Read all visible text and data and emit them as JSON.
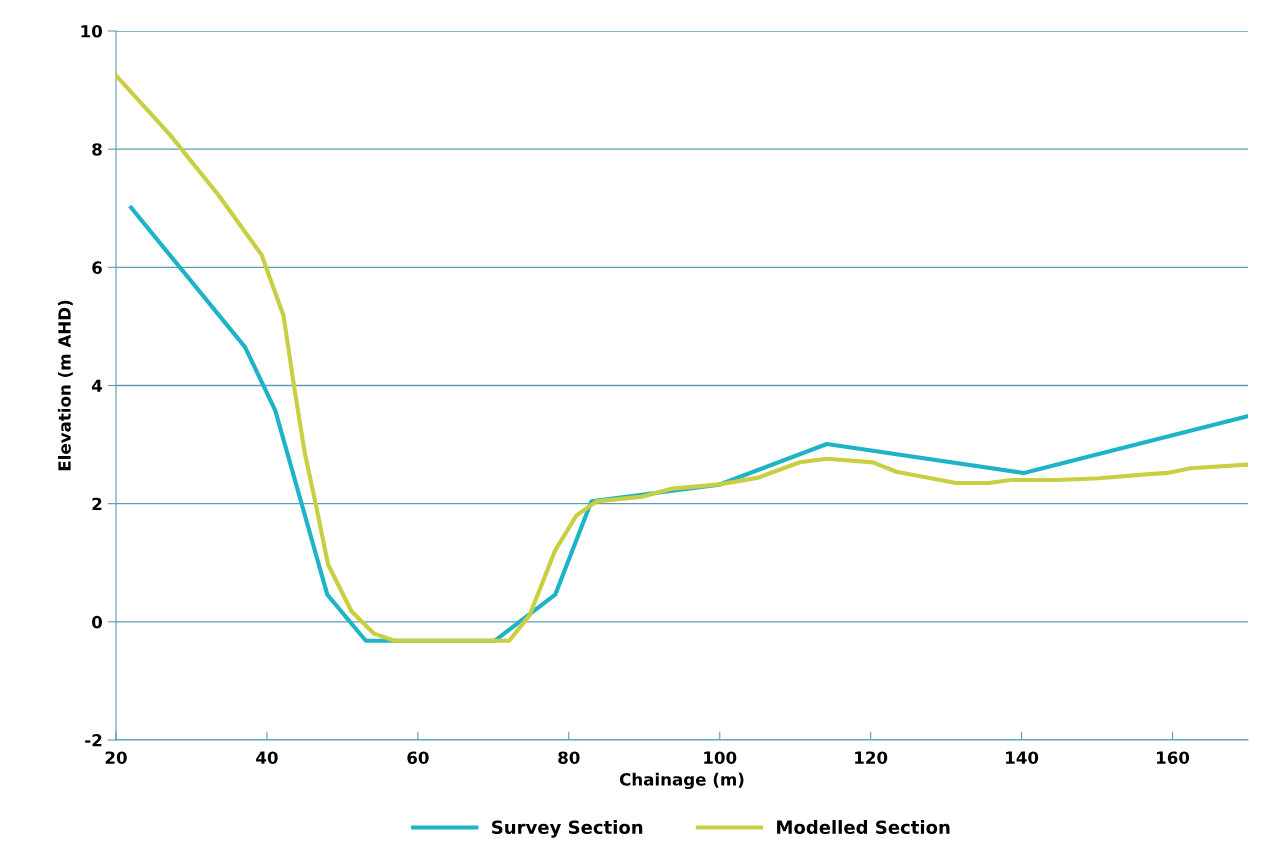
{
  "chart_data": {
    "type": "line",
    "xlabel": "Chainage (m)",
    "ylabel": "Elevation (m AHD)",
    "xlim": [
      20,
      170
    ],
    "xticks": [
      20,
      40,
      60,
      80,
      100,
      120,
      140,
      160
    ],
    "ylim": [
      -2,
      10
    ],
    "yticks": [
      -2,
      0,
      2,
      4,
      6,
      8,
      10
    ],
    "grid": "y",
    "legend": "bottom",
    "marker": "none",
    "line_style": "solid",
    "series": [
      {
        "name": "Survey Section",
        "color": "#1fb3c8",
        "x": [
          22,
          37.1,
          41.1,
          48,
          53.1,
          70.2,
          78.2,
          83,
          99.9,
          114.2,
          140.3,
          170
        ],
        "values": [
          7.01,
          4.65,
          3.58,
          0.46,
          -0.32,
          -0.32,
          0.46,
          2.04,
          2.32,
          3.01,
          2.52,
          3.48
        ]
      },
      {
        "name": "Modelled Section",
        "color": "#c8cf42",
        "x": [
          20,
          27.1,
          33.6,
          39.3,
          42.2,
          43.6,
          45,
          46.5,
          48.1,
          51.2,
          54.2,
          56.9,
          72.1,
          74.8,
          78.2,
          81,
          83.7,
          89.8,
          93.5,
          100.2,
          105.1,
          110.6,
          114.2,
          120.3,
          123.4,
          131.3,
          135.6,
          138.6,
          144.7,
          150.2,
          156.9,
          159.3,
          162.4,
          170
        ],
        "values": [
          9.25,
          8.25,
          7.22,
          6.21,
          5.18,
          3.98,
          2.87,
          1.97,
          0.97,
          0.18,
          -0.2,
          -0.32,
          -0.32,
          0.11,
          1.21,
          1.8,
          2.04,
          2.12,
          2.25,
          2.33,
          2.44,
          2.7,
          2.76,
          2.7,
          2.54,
          2.35,
          2.35,
          2.4,
          2.4,
          2.43,
          2.5,
          2.52,
          2.6,
          2.66
        ]
      }
    ]
  }
}
